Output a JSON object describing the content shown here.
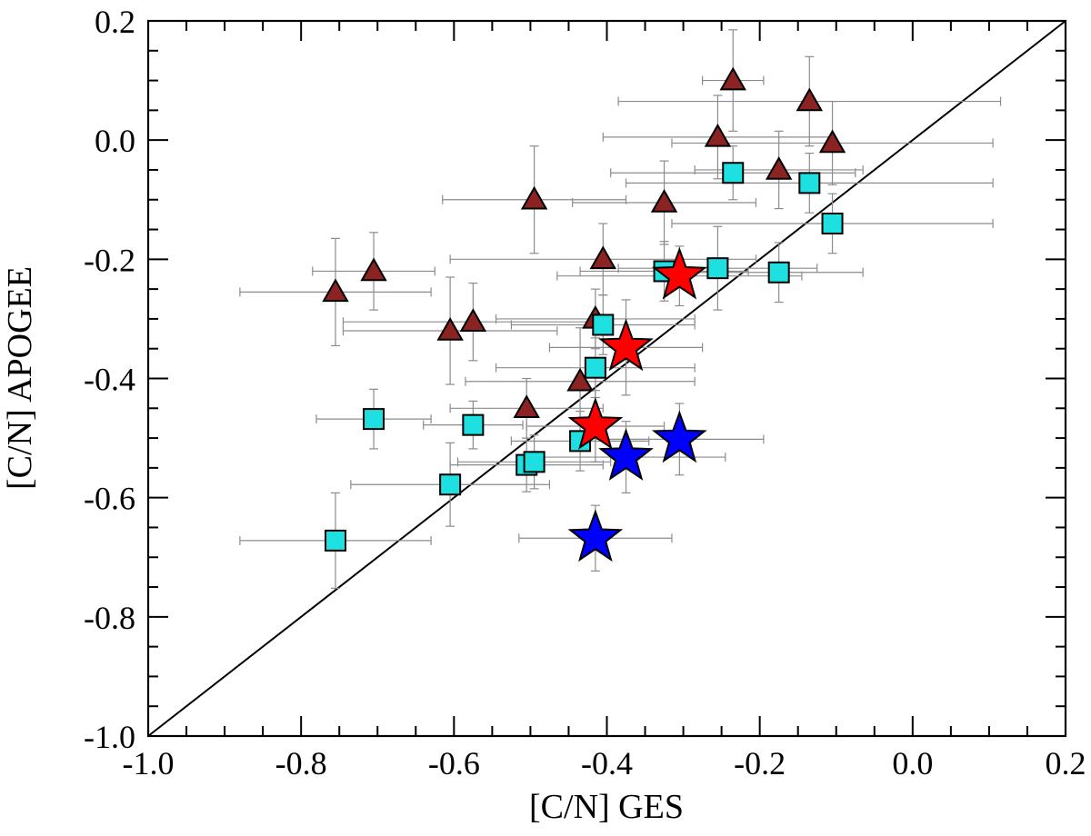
{
  "chart_data": {
    "type": "scatter",
    "title": "",
    "xlabel": "[C/N] GES",
    "ylabel": "[C/N] APOGEE",
    "xlim": [
      -1.0,
      0.2
    ],
    "ylim": [
      -1.0,
      0.2
    ],
    "x_ticks": [
      "-1.0",
      "-0.8",
      "-0.6",
      "-0.4",
      "-0.2",
      "0.0",
      "0.2"
    ],
    "y_ticks": [
      "-1.0",
      "-0.8",
      "-0.6",
      "-0.4",
      "-0.2",
      "0.0",
      "0.2"
    ],
    "reference_line": {
      "name": "one-to-one",
      "x": [
        -1.0,
        0.2
      ],
      "y": [
        -1.0,
        0.2
      ]
    },
    "grid": false,
    "series": [
      {
        "name": "triangles",
        "marker": "triangle",
        "color": "#8b2323",
        "points": [
          {
            "x": -0.755,
            "y": -0.255,
            "xerr": 0.125,
            "yerr": 0.09
          },
          {
            "x": -0.705,
            "y": -0.22,
            "xerr": 0.08,
            "yerr": 0.065
          },
          {
            "x": -0.605,
            "y": -0.32,
            "xerr": 0.14,
            "yerr": 0.09
          },
          {
            "x": -0.575,
            "y": -0.305,
            "xerr": 0.17,
            "yerr": 0.065
          },
          {
            "x": -0.505,
            "y": -0.45,
            "xerr": 0.1,
            "yerr": 0.05
          },
          {
            "x": -0.495,
            "y": -0.1,
            "xerr": 0.12,
            "yerr": 0.09
          },
          {
            "x": -0.435,
            "y": -0.405,
            "xerr": 0.15,
            "yerr": 0.09
          },
          {
            "x": -0.415,
            "y": -0.3,
            "xerr": 0.13,
            "yerr": 0.05
          },
          {
            "x": -0.405,
            "y": -0.2,
            "xerr": 0.2,
            "yerr": 0.06
          },
          {
            "x": -0.325,
            "y": -0.105,
            "xerr": 0.12,
            "yerr": 0.07
          },
          {
            "x": -0.255,
            "y": 0.005,
            "xerr": 0.15,
            "yerr": 0.07
          },
          {
            "x": -0.235,
            "y": 0.1,
            "xerr": 0.04,
            "yerr": 0.085
          },
          {
            "x": -0.175,
            "y": -0.05,
            "xerr": 0.11,
            "yerr": 0.065
          },
          {
            "x": -0.135,
            "y": 0.065,
            "xerr": 0.25,
            "yerr": 0.075
          },
          {
            "x": -0.105,
            "y": -0.005,
            "xerr": 0.21,
            "yerr": 0.07
          }
        ]
      },
      {
        "name": "squares",
        "marker": "square",
        "color": "#1fe0e0",
        "points": [
          {
            "x": -0.755,
            "y": -0.672,
            "xerr": 0.125,
            "yerr": 0.08
          },
          {
            "x": -0.705,
            "y": -0.468,
            "xerr": 0.075,
            "yerr": 0.05
          },
          {
            "x": -0.605,
            "y": -0.578,
            "xerr": 0.13,
            "yerr": 0.07
          },
          {
            "x": -0.575,
            "y": -0.478,
            "xerr": 0.065,
            "yerr": 0.04
          },
          {
            "x": -0.505,
            "y": -0.545,
            "xerr": 0.1,
            "yerr": 0.045
          },
          {
            "x": -0.495,
            "y": -0.54,
            "xerr": 0.1,
            "yerr": 0.045
          },
          {
            "x": -0.435,
            "y": -0.505,
            "xerr": 0.09,
            "yerr": 0.05
          },
          {
            "x": -0.415,
            "y": -0.382,
            "xerr": 0.13,
            "yerr": 0.05
          },
          {
            "x": -0.405,
            "y": -0.31,
            "xerr": 0.12,
            "yerr": 0.05
          },
          {
            "x": -0.325,
            "y": -0.22,
            "xerr": 0.11,
            "yerr": 0.05
          },
          {
            "x": -0.255,
            "y": -0.215,
            "xerr": 0.13,
            "yerr": 0.07
          },
          {
            "x": -0.235,
            "y": -0.055,
            "xerr": 0.16,
            "yerr": 0.045
          },
          {
            "x": -0.175,
            "y": -0.222,
            "xerr": 0.11,
            "yerr": 0.05
          },
          {
            "x": -0.135,
            "y": -0.072,
            "xerr": 0.24,
            "yerr": 0.05
          },
          {
            "x": -0.105,
            "y": -0.14,
            "xerr": 0.21,
            "yerr": 0.05
          }
        ]
      },
      {
        "name": "red stars",
        "marker": "star",
        "color": "#ff0000",
        "points": [
          {
            "x": -0.305,
            "y": -0.228,
            "xerr": 0.16,
            "yerr": 0.05
          },
          {
            "x": -0.375,
            "y": -0.348,
            "xerr": 0.1,
            "yerr": 0.08
          },
          {
            "x": -0.415,
            "y": -0.48,
            "xerr": 0.09,
            "yerr": 0.06
          }
        ]
      },
      {
        "name": "blue stars",
        "marker": "star",
        "color": "#0000ff",
        "points": [
          {
            "x": -0.305,
            "y": -0.502,
            "xerr": 0.11,
            "yerr": 0.06
          },
          {
            "x": -0.375,
            "y": -0.532,
            "xerr": 0.13,
            "yerr": 0.06
          },
          {
            "x": -0.415,
            "y": -0.668,
            "xerr": 0.1,
            "yerr": 0.055
          }
        ]
      }
    ]
  }
}
